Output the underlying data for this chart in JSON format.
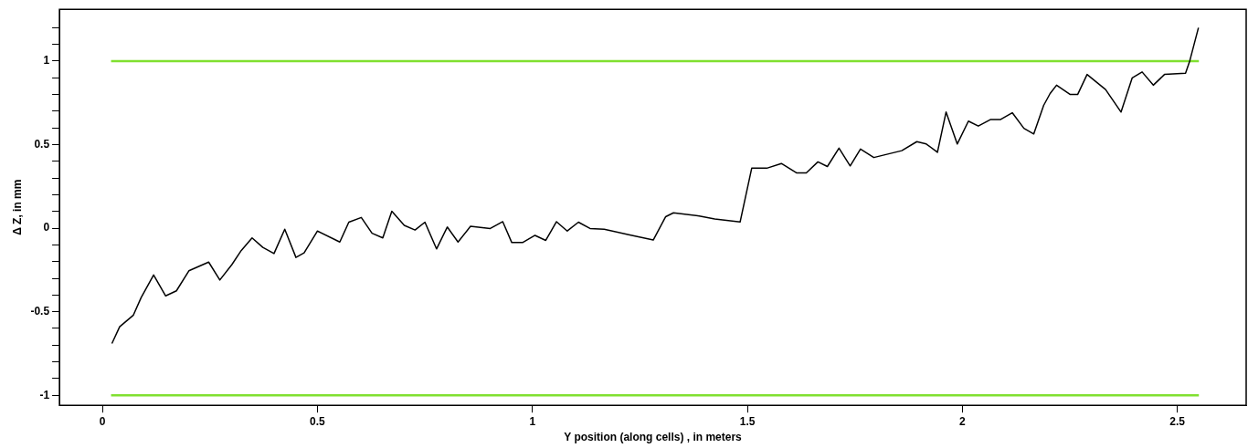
{
  "chart_data": {
    "type": "line",
    "xlabel": "Y position (along cells) , in meters",
    "ylabel": "Δ Z, in mm",
    "xlim": [
      -0.1,
      2.66
    ],
    "ylim": [
      -1.06,
      1.31
    ],
    "xticks": [
      0,
      0.5,
      1,
      1.5,
      2,
      2.5
    ],
    "yticks": [
      {
        "value": -1,
        "label": "-1"
      },
      {
        "value": -0.9,
        "label": null
      },
      {
        "value": -0.8,
        "label": null
      },
      {
        "value": -0.7,
        "label": null
      },
      {
        "value": -0.6,
        "label": null
      },
      {
        "value": -0.5,
        "label": "-0.5"
      },
      {
        "value": -0.4,
        "label": null
      },
      {
        "value": -0.3,
        "label": null
      },
      {
        "value": -0.2,
        "label": null
      },
      {
        "value": -0.1,
        "label": null
      },
      {
        "value": 0,
        "label": "0"
      },
      {
        "value": 0.1,
        "label": null
      },
      {
        "value": 0.2,
        "label": null
      },
      {
        "value": 0.3,
        "label": null
      },
      {
        "value": 0.4,
        "label": null
      },
      {
        "value": 0.5,
        "label": "0.5"
      },
      {
        "value": 0.6,
        "label": null
      },
      {
        "value": 0.7,
        "label": null
      },
      {
        "value": 0.8,
        "label": null
      },
      {
        "value": 0.9,
        "label": null
      },
      {
        "value": 1,
        "label": "1"
      },
      {
        "value": 1.1,
        "label": null
      },
      {
        "value": 1.2,
        "label": null
      }
    ],
    "grid": false,
    "legend": false,
    "marker": "none",
    "line_style": "solid",
    "series": [
      {
        "color": "#000000",
        "x": [
          0.022,
          0.04,
          0.072,
          0.09,
          0.119,
          0.147,
          0.172,
          0.201,
          0.247,
          0.273,
          0.301,
          0.323,
          0.348,
          0.373,
          0.399,
          0.424,
          0.45,
          0.469,
          0.5,
          0.552,
          0.573,
          0.602,
          0.627,
          0.652,
          0.673,
          0.702,
          0.727,
          0.75,
          0.777,
          0.802,
          0.827,
          0.856,
          0.902,
          0.931,
          0.952,
          0.977,
          1.006,
          1.031,
          1.056,
          1.081,
          1.107,
          1.134,
          1.167,
          1.224,
          1.281,
          1.31,
          1.328,
          1.388,
          1.424,
          1.483,
          1.51,
          1.545,
          1.579,
          1.614,
          1.637,
          1.664,
          1.686,
          1.713,
          1.739,
          1.763,
          1.794,
          1.859,
          1.894,
          1.916,
          1.942,
          1.962,
          1.988,
          2.014,
          2.037,
          2.066,
          2.089,
          2.116,
          2.143,
          2.166,
          2.189,
          2.204,
          2.219,
          2.251,
          2.268,
          2.29,
          2.333,
          2.369,
          2.395,
          2.418,
          2.444,
          2.47,
          2.519,
          2.529,
          2.549
        ],
        "values": [
          -0.69,
          -0.59,
          -0.52,
          -0.415,
          -0.28,
          -0.405,
          -0.375,
          -0.255,
          -0.203,
          -0.31,
          -0.218,
          -0.133,
          -0.058,
          -0.115,
          -0.152,
          -0.006,
          -0.175,
          -0.148,
          -0.017,
          -0.083,
          0.036,
          0.064,
          -0.03,
          -0.058,
          0.101,
          0.017,
          -0.011,
          0.036,
          -0.124,
          0.007,
          -0.083,
          0.011,
          -0.002,
          0.039,
          -0.086,
          -0.086,
          -0.043,
          -0.073,
          0.039,
          -0.017,
          0.036,
          -0.002,
          -0.006,
          -0.039,
          -0.071,
          0.069,
          0.092,
          0.073,
          0.055,
          0.037,
          0.359,
          0.359,
          0.387,
          0.331,
          0.331,
          0.397,
          0.369,
          0.479,
          0.373,
          0.474,
          0.423,
          0.464,
          0.518,
          0.504,
          0.454,
          0.695,
          0.504,
          0.641,
          0.611,
          0.651,
          0.651,
          0.691,
          0.598,
          0.564,
          0.735,
          0.806,
          0.856,
          0.8,
          0.8,
          0.92,
          0.83,
          0.695,
          0.9,
          0.935,
          0.856,
          0.92,
          0.928,
          1.003,
          1.2
        ]
      },
      {
        "color": "#80e030",
        "x": [
          0.02,
          2.55
        ],
        "values": [
          1,
          1
        ]
      },
      {
        "color": "#80e030",
        "x": [
          0.02,
          2.55
        ],
        "values": [
          -1,
          -1
        ]
      }
    ]
  }
}
